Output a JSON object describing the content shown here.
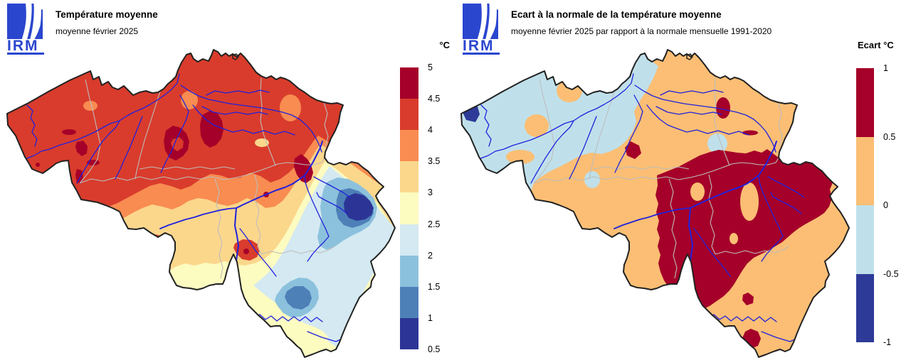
{
  "palette": {
    "temp_45_5": "#a50029",
    "temp_4_45": "#d93c2c",
    "temp_35_4": "#f88c51",
    "temp_3_35": "#fbd78c",
    "temp_25_3": "#fcfbc0",
    "temp_2_25": "#d4e9f1",
    "temp_15_2": "#8cc1dd",
    "temp_1_15": "#4e80b8",
    "temp_05_1": "#2c3596",
    "anom_05_1": "#a50029",
    "anom_0_05": "#fbbe74",
    "anom_m05_0": "#bfe0ea",
    "anom_m1_m05": "#2e3a97",
    "river": "#2121dd",
    "province_border": "#bdbdbd",
    "country_border": "#222222",
    "logo_blue": "#2a46cf",
    "background": "#ffffff"
  },
  "left_panel": {
    "logo_text": "IRM",
    "title": "Température moyenne",
    "subtitle": "moyenne février 2025",
    "legend": {
      "title": "°C",
      "tick_labels": [
        "5",
        "4.5",
        "4",
        "3.5",
        "3",
        "2.5",
        "2",
        "1.5",
        "1",
        "0.5"
      ],
      "segment_colors_top_to_bottom": [
        "#a50029",
        "#d93c2c",
        "#f88c51",
        "#fbd78c",
        "#fcfbc0",
        "#d4e9f1",
        "#8cc1dd",
        "#4e80b8",
        "#2c3596"
      ]
    }
  },
  "right_panel": {
    "logo_text": "IRM",
    "title": "Ecart à la normale de la température moyenne",
    "subtitle": "moyenne février 2025 par rapport à la normale mensuelle 1991-2020",
    "legend": {
      "title": "Ecart °C",
      "tick_labels": [
        "1",
        "0.5",
        "0",
        "-0.5",
        "-1"
      ],
      "segment_colors_top_to_bottom": [
        "#a50029",
        "#fbbe74",
        "#bfe0ea",
        "#2e3a97"
      ]
    }
  }
}
